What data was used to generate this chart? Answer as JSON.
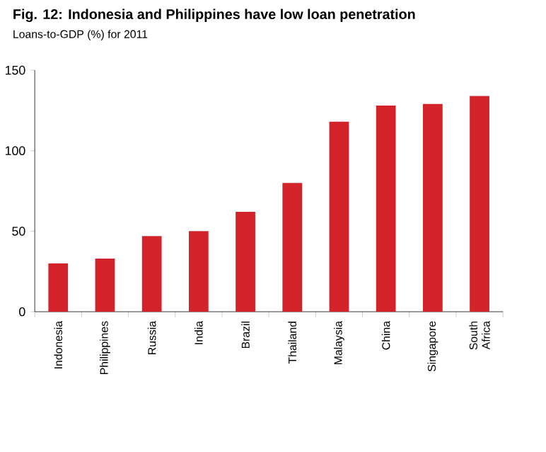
{
  "chart_data": {
    "type": "bar",
    "title": "Fig. 12: Indonesia and Philippines have low loan penetration",
    "subtitle": "Loans-to-GDP (%) for 2011",
    "categories": [
      "Indonesia",
      "Philippines",
      "Russia",
      "India",
      "Brazil",
      "Thailand",
      "Malaysia",
      "China",
      "Singapore",
      "South Africa"
    ],
    "values": [
      30,
      33,
      47,
      50,
      62,
      80,
      118,
      128,
      129,
      134
    ],
    "color": "#d2232a",
    "ylim": [
      0,
      150
    ],
    "yticks": [
      0,
      50,
      100,
      150
    ],
    "grid": false
  }
}
